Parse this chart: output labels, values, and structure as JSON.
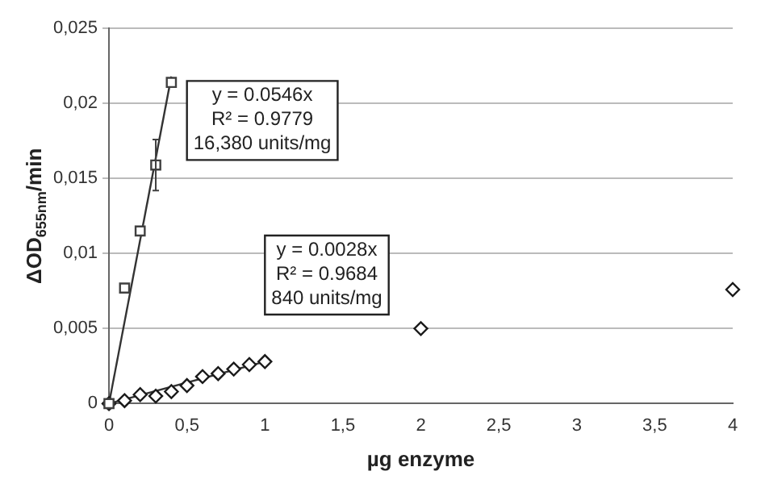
{
  "chart_data": {
    "type": "scatter",
    "xlabel": "µg enzyme",
    "ylabel": "ΔOD$_{655nm}$/min",
    "xlim": [
      0,
      4
    ],
    "xticks": [
      0,
      {
        "value": 0.5,
        "label": "0,5"
      },
      1,
      {
        "value": 1.5,
        "label": "1,5"
      },
      2,
      {
        "value": 2.5,
        "label": "2,5"
      },
      3,
      {
        "value": 3.5,
        "label": "3,5"
      },
      4
    ],
    "ylim": [
      0,
      0.025
    ],
    "yticks": [
      0,
      {
        "value": 0.005,
        "label": "0,005"
      },
      {
        "value": 0.01,
        "label": "0,01"
      },
      {
        "value": 0.015,
        "label": "0,015"
      },
      {
        "value": 0.02,
        "label": "0,02"
      },
      {
        "value": 0.025,
        "label": "0,025"
      }
    ],
    "grid": "y",
    "legend": false,
    "series": [
      {
        "marker": "square",
        "color": "#404040",
        "x": [
          0,
          0.1,
          0.2,
          0.3,
          0.4
        ],
        "values": [
          0,
          0.0077,
          0.0115,
          0.0159,
          0.0214
        ],
        "errors": [
          null,
          null,
          null,
          0.0017,
          null
        ]
      },
      {
        "marker": "diamond",
        "color": "#1a1a1a",
        "x": [
          0,
          0.1,
          0.2,
          0.3,
          0.4,
          0.5,
          0.6,
          0.7,
          0.8,
          0.9,
          1,
          2,
          4
        ],
        "values": [
          0,
          0.0002,
          0.0006,
          0.0005,
          0.0008,
          0.0012,
          0.0018,
          0.002,
          0.0023,
          0.0026,
          0.0028,
          0.005,
          0.0076
        ]
      },
      {
        "type": "line",
        "marker": "none",
        "color": "#333333",
        "x": [
          0,
          0.4
        ],
        "values": [
          0,
          0.0218
        ]
      },
      {
        "type": "line",
        "marker": "none",
        "color": "#333333",
        "x": [
          0,
          1
        ],
        "values": [
          0,
          0.0028
        ]
      }
    ],
    "annotations": [
      "y = 0.0546x\nR² = 0.9779\n16,380 units/mg",
      "y = 0.0028x\nR² = 0.9684\n840 units/mg"
    ]
  }
}
